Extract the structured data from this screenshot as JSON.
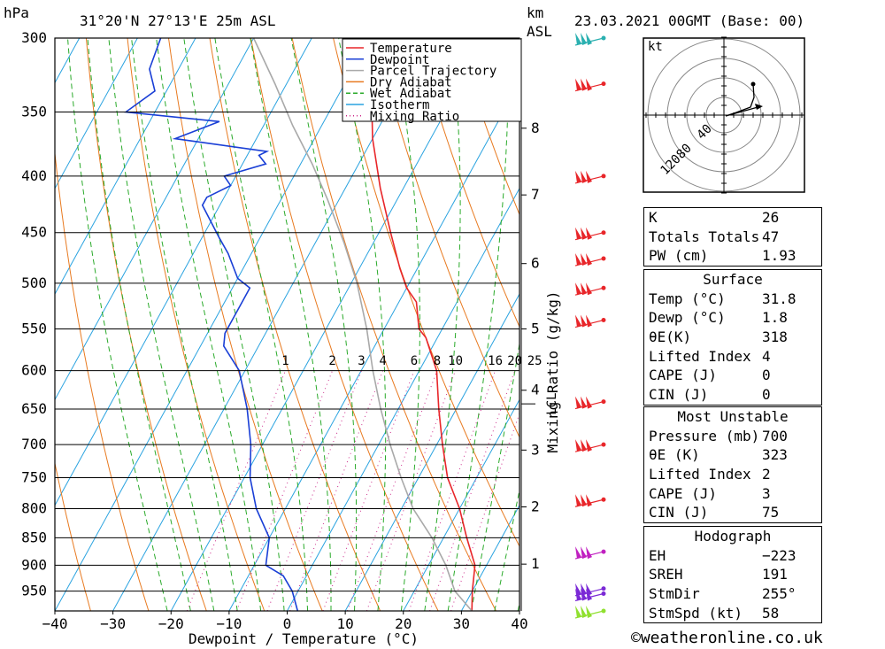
{
  "header": {
    "location": "31°20'N  27°13'E  25m  ASL",
    "datetime": "23.03.2021  00GMT  (Base: 00)",
    "pressure_unit": "hPa",
    "height_unit_1": "km",
    "height_unit_2": "ASL"
  },
  "chart_data": {
    "type": "line",
    "title": "",
    "xlabel": "Dewpoint / Temperature (°C)",
    "ylabel": "hPa",
    "mixing_label": "Mixing Ratio (g/kg)",
    "xlim": [
      -40,
      40
    ],
    "ylim": [
      990,
      300
    ],
    "log_y": true,
    "x_ticks": [
      -40,
      -30,
      -20,
      -10,
      0,
      10,
      20,
      30,
      40
    ],
    "x_tick_labels": [
      "−40",
      "−30",
      "−20",
      "−10",
      "0",
      "10",
      "20",
      "30",
      "40"
    ],
    "pressure_levels": [
      300,
      350,
      400,
      450,
      500,
      550,
      600,
      650,
      700,
      750,
      800,
      850,
      900,
      950
    ],
    "km_labels": [
      {
        "km": "8",
        "p": 362
      },
      {
        "km": "7",
        "p": 416
      },
      {
        "km": "6",
        "p": 480
      },
      {
        "km": "5",
        "p": 550
      },
      {
        "km": "4",
        "p": 625
      },
      {
        "km": "3",
        "p": 708
      },
      {
        "km": "2",
        "p": 797
      },
      {
        "km": "1",
        "p": 898
      }
    ],
    "lcl_label": {
      "text": "LCL",
      "p": 643
    },
    "mixing_ratio_labels": [
      "1",
      "2",
      "3",
      "4",
      "6",
      "8",
      "10",
      "16",
      "20",
      "25"
    ],
    "series": [
      {
        "name": "Temperature",
        "color": "#e8262a",
        "points": [
          [
            31.8,
            990
          ],
          [
            30,
            950
          ],
          [
            28,
            900
          ],
          [
            24,
            850
          ],
          [
            20,
            800
          ],
          [
            15,
            750
          ],
          [
            11,
            700
          ],
          [
            7,
            650
          ],
          [
            3,
            600
          ],
          [
            -2,
            560
          ],
          [
            -4,
            550
          ],
          [
            -7,
            520
          ],
          [
            -10,
            505
          ],
          [
            -13,
            485
          ],
          [
            -18,
            450
          ],
          [
            -24,
            410
          ],
          [
            -30,
            370
          ],
          [
            -34,
            340
          ],
          [
            -38,
            320
          ],
          [
            -40,
            300
          ]
        ]
      },
      {
        "name": "Dewpoint",
        "color": "#1a3fd6",
        "points": [
          [
            1.8,
            990
          ],
          [
            -1,
            950
          ],
          [
            -4,
            920
          ],
          [
            -8,
            900
          ],
          [
            -10,
            850
          ],
          [
            -15,
            800
          ],
          [
            -19,
            750
          ],
          [
            -22,
            700
          ],
          [
            -26,
            650
          ],
          [
            -31,
            600
          ],
          [
            -36,
            570
          ],
          [
            -37,
            555
          ],
          [
            -37,
            520
          ],
          [
            -37,
            505
          ],
          [
            -40,
            495
          ],
          [
            -44,
            470
          ],
          [
            -47,
            455
          ],
          [
            -53,
            425
          ],
          [
            -53,
            418
          ],
          [
            -50,
            408
          ],
          [
            -52,
            400
          ],
          [
            -46,
            390
          ],
          [
            -48,
            383
          ],
          [
            -47,
            380
          ],
          [
            -64,
            370
          ],
          [
            -58,
            357
          ],
          [
            -75,
            350
          ],
          [
            -72,
            335
          ],
          [
            -75,
            320
          ],
          [
            -76,
            300
          ]
        ]
      },
      {
        "name": "Parcel Trajectory",
        "color": "#a9a9a9",
        "points": [
          [
            31.8,
            990
          ],
          [
            27,
            950
          ],
          [
            23,
            900
          ],
          [
            18,
            850
          ],
          [
            12,
            800
          ],
          [
            7,
            750
          ],
          [
            2,
            700
          ],
          [
            -3,
            650
          ],
          [
            -8,
            600
          ],
          [
            -13,
            550
          ],
          [
            -19,
            500
          ],
          [
            -25,
            460
          ],
          [
            -32,
            420
          ],
          [
            -38,
            390
          ],
          [
            -45,
            360
          ],
          [
            -52,
            330
          ],
          [
            -60,
            300
          ]
        ]
      }
    ],
    "legend": [
      {
        "label": "Temperature",
        "color": "#e8262a",
        "style": "solid"
      },
      {
        "label": "Dewpoint",
        "color": "#1a3fd6",
        "style": "solid"
      },
      {
        "label": "Parcel Trajectory",
        "color": "#a9a9a9",
        "style": "solid"
      },
      {
        "label": "Dry Adiabat",
        "color": "#e87a20",
        "style": "solid"
      },
      {
        "label": "Wet Adiabat",
        "color": "#2aaa2a",
        "style": "dashed"
      },
      {
        "label": "Isotherm",
        "color": "#2aa3e0",
        "style": "solid"
      },
      {
        "label": "Mixing Ratio",
        "color": "#cc2a8a",
        "style": "dotted"
      }
    ],
    "legend_position": "top-right",
    "grid": true
  },
  "wind_barbs": [
    {
      "p": 300,
      "color": "#2ab0b0"
    },
    {
      "p": 330,
      "color": "#e8262a"
    },
    {
      "p": 400,
      "color": "#e8262a"
    },
    {
      "p": 450,
      "color": "#e8262a"
    },
    {
      "p": 475,
      "color": "#e8262a"
    },
    {
      "p": 505,
      "color": "#e8262a"
    },
    {
      "p": 540,
      "color": "#e8262a"
    },
    {
      "p": 640,
      "color": "#e8262a"
    },
    {
      "p": 700,
      "color": "#e8262a"
    },
    {
      "p": 785,
      "color": "#e8262a"
    },
    {
      "p": 875,
      "color": "#c020c0"
    },
    {
      "p": 945,
      "color": "#7b2ad6"
    },
    {
      "p": 955,
      "color": "#7b2ad6"
    },
    {
      "p": 990,
      "color": "#90e030"
    }
  ],
  "hodograph": {
    "unit": "kt",
    "ring_labels": [
      "40",
      "80",
      "120"
    ]
  },
  "indices": [
    {
      "key": "K",
      "value": "26"
    },
    {
      "key": "Totals Totals",
      "value": "47"
    },
    {
      "key": "PW (cm)",
      "value": "1.93"
    }
  ],
  "surface": {
    "title": "Surface",
    "rows": [
      {
        "key": "Temp (°C)",
        "value": "31.8"
      },
      {
        "key": "Dewp (°C)",
        "value": "1.8"
      },
      {
        "key": "θE(K)",
        "value": "318"
      },
      {
        "key": "Lifted Index",
        "value": "4"
      },
      {
        "key": "CAPE (J)",
        "value": "0"
      },
      {
        "key": "CIN (J)",
        "value": "0"
      }
    ]
  },
  "most_unstable": {
    "title": "Most Unstable",
    "rows": [
      {
        "key": "Pressure (mb)",
        "value": "700"
      },
      {
        "key": "θE (K)",
        "value": "323"
      },
      {
        "key": "Lifted Index",
        "value": "2"
      },
      {
        "key": "CAPE (J)",
        "value": "3"
      },
      {
        "key": "CIN (J)",
        "value": "75"
      }
    ]
  },
  "hodograph_table": {
    "title": "Hodograph",
    "rows": [
      {
        "key": "EH",
        "value": "−223"
      },
      {
        "key": "SREH",
        "value": "191"
      },
      {
        "key": "StmDir",
        "value": "255°"
      },
      {
        "key": "StmSpd (kt)",
        "value": "58"
      }
    ]
  },
  "credit": "©weatheronline.co.uk"
}
